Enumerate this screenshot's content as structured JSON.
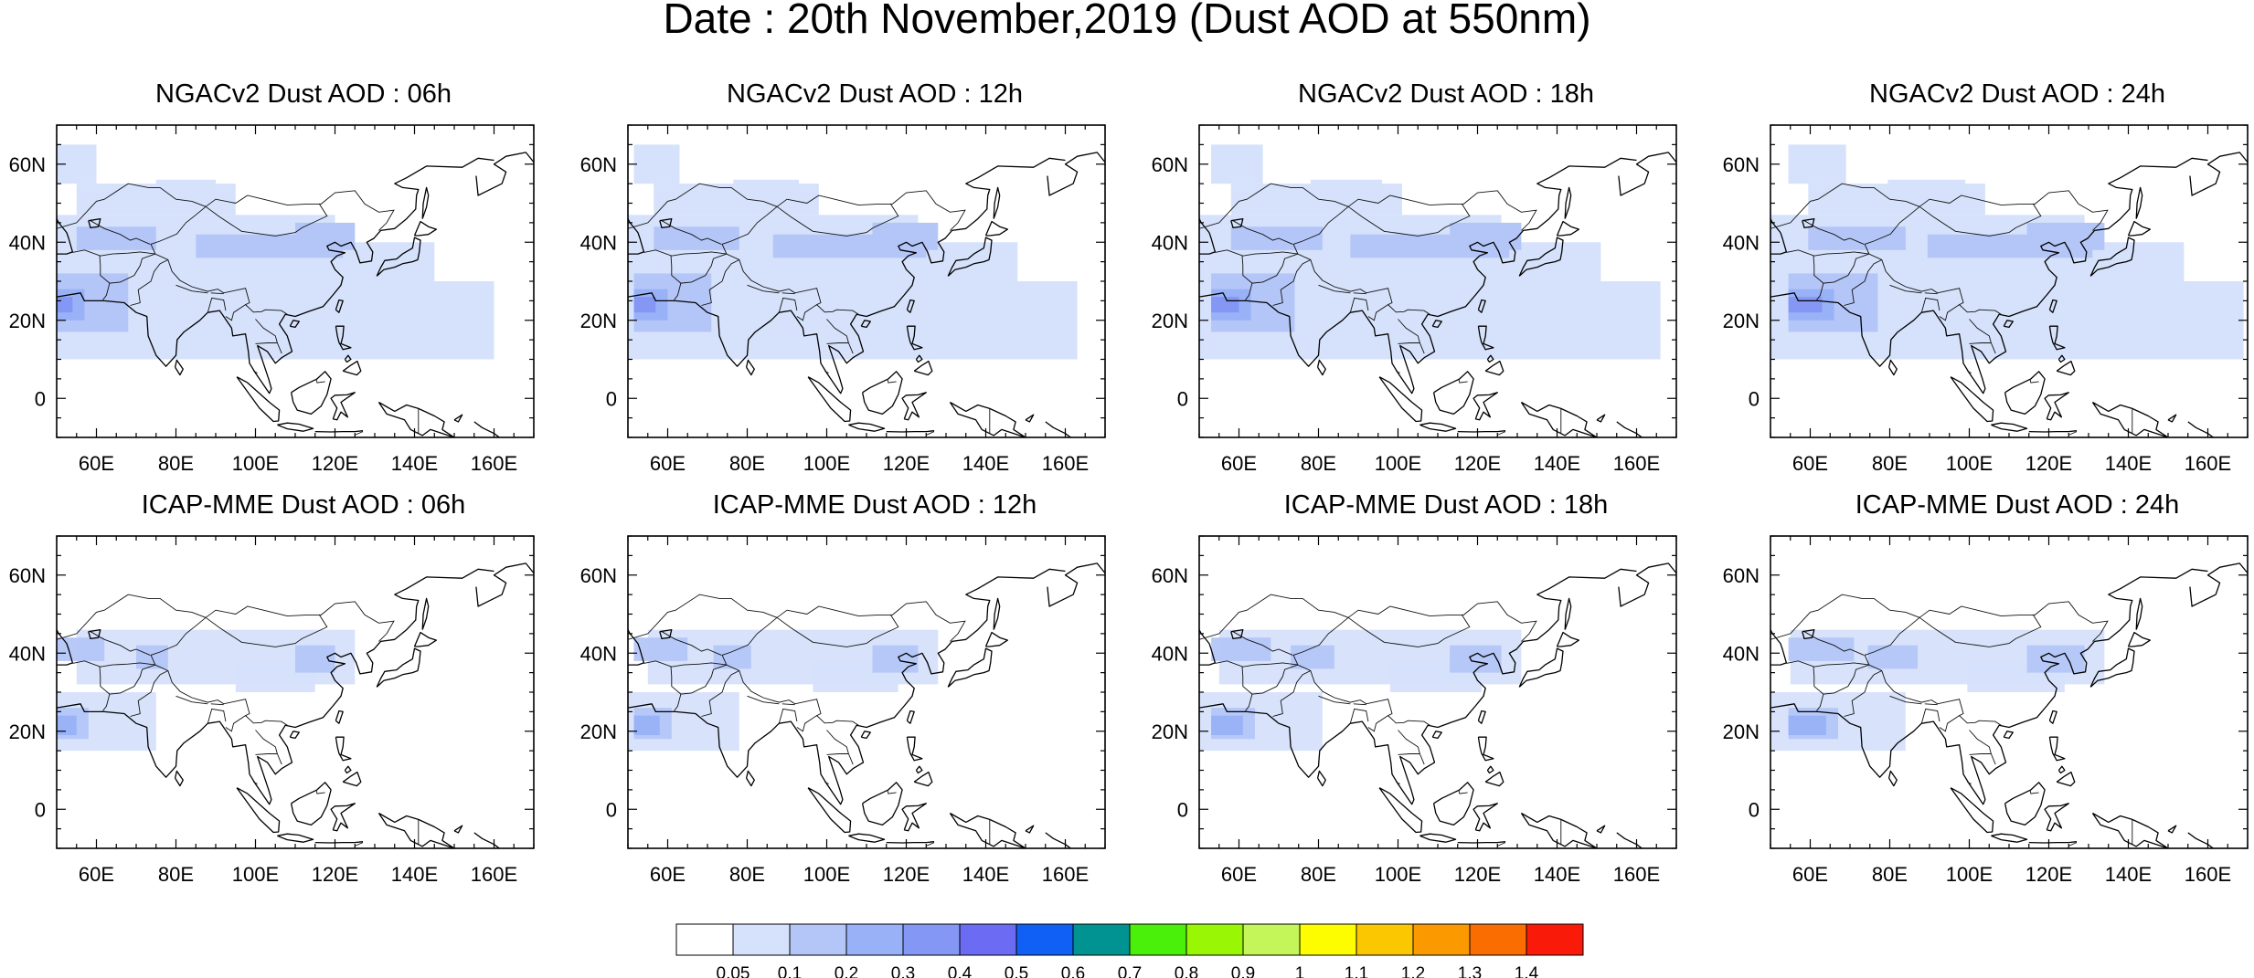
{
  "figure": {
    "title": "Date : 20th November,2019 (Dust AOD at 550nm)"
  },
  "panels": [
    {
      "title": "NGACv2 Dust AOD : 06h",
      "model": "NGACv2",
      "hour": "06h"
    },
    {
      "title": "NGACv2 Dust AOD : 12h",
      "model": "NGACv2",
      "hour": "12h"
    },
    {
      "title": "NGACv2 Dust AOD : 18h",
      "model": "NGACv2",
      "hour": "18h"
    },
    {
      "title": "NGACv2 Dust AOD : 24h",
      "model": "NGACv2",
      "hour": "24h"
    },
    {
      "title": "ICAP-MME Dust AOD : 06h",
      "model": "ICAP-MME",
      "hour": "06h"
    },
    {
      "title": "ICAP-MME Dust AOD : 12h",
      "model": "ICAP-MME",
      "hour": "12h"
    },
    {
      "title": "ICAP-MME Dust AOD : 18h",
      "model": "ICAP-MME",
      "hour": "18h"
    },
    {
      "title": "ICAP-MME Dust AOD : 24h",
      "model": "ICAP-MME",
      "hour": "24h"
    }
  ],
  "map": {
    "lon_range": [
      50,
      170
    ],
    "lat_range": [
      -10,
      70
    ],
    "lon_ticks": [
      "60E",
      "80E",
      "100E",
      "120E",
      "140E",
      "160E"
    ],
    "lat_ticks": [
      "0",
      "20N",
      "40N",
      "60N"
    ]
  },
  "colorbar": {
    "labels": [
      "0.05",
      "0.1",
      "0.2",
      "0.3",
      "0.4",
      "0.5",
      "0.6",
      "0.7",
      "0.8",
      "0.9",
      "1",
      "1.1",
      "1.2",
      "1.3",
      "1.4"
    ],
    "colors": [
      "#ffffff",
      "#d6e2fb",
      "#b4c6f8",
      "#99b2f7",
      "#8597f5",
      "#6b6cf3",
      "#1060f5",
      "#009391",
      "#4aef0a",
      "#99f706",
      "#c4f559",
      "#fdfd00",
      "#fbc700",
      "#fa9a00",
      "#fa6d00",
      "#fa1a0a"
    ]
  }
}
